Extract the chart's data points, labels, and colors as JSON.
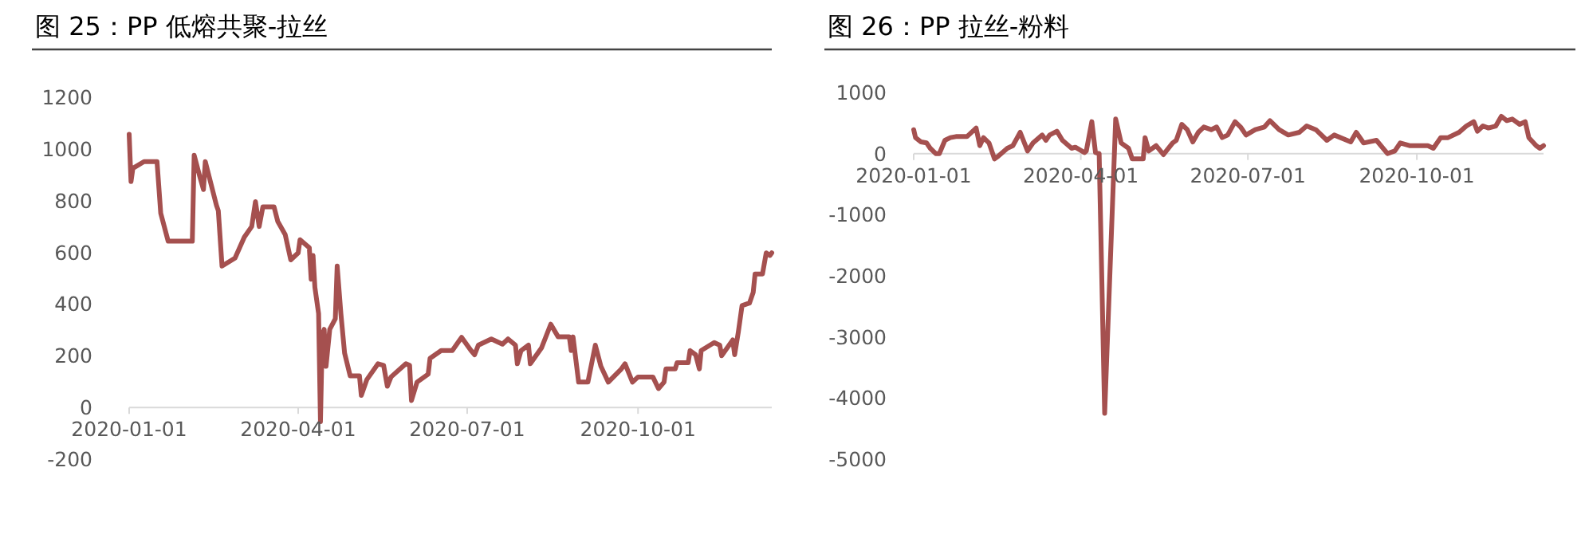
{
  "chart_data": [
    {
      "type": "line",
      "title": "图 25：PP 低熔共聚-拉丝",
      "color": "#a5504f",
      "x": [
        "2020-01-01",
        "2020-01-02",
        "2020-01-03",
        "2020-01-09",
        "2020-01-16",
        "2020-01-18",
        "2020-01-22",
        "2020-02-04",
        "2020-02-05",
        "2020-02-08",
        "2020-02-10",
        "2020-02-11",
        "2020-02-17",
        "2020-02-18",
        "2020-02-20",
        "2020-02-27",
        "2020-03-03",
        "2020-03-07",
        "2020-03-09",
        "2020-03-11",
        "2020-03-13",
        "2020-03-19",
        "2020-03-21",
        "2020-03-25",
        "2020-03-28",
        "2020-04-01",
        "2020-04-02",
        "2020-04-07",
        "2020-04-08",
        "2020-04-09",
        "2020-04-10",
        "2020-04-12",
        "2020-04-13",
        "2020-04-14",
        "2020-04-15",
        "2020-04-16",
        "2020-04-18",
        "2020-04-21",
        "2020-04-22",
        "2020-04-24",
        "2020-04-26",
        "2020-04-29",
        "2020-05-04",
        "2020-05-05",
        "2020-05-08",
        "2020-05-14",
        "2020-05-17",
        "2020-05-19",
        "2020-05-21",
        "2020-05-29",
        "2020-05-31",
        "2020-06-01",
        "2020-06-04",
        "2020-06-10",
        "2020-06-11",
        "2020-06-17",
        "2020-06-23",
        "2020-06-27",
        "2020-06-28",
        "2020-07-03",
        "2020-07-05",
        "2020-07-07",
        "2020-07-14",
        "2020-07-20",
        "2020-07-23",
        "2020-07-27",
        "2020-07-28",
        "2020-07-30",
        "2020-08-03",
        "2020-08-04",
        "2020-08-10",
        "2020-08-15",
        "2020-08-19",
        "2020-08-25",
        "2020-08-26",
        "2020-08-27",
        "2020-08-30",
        "2020-09-04",
        "2020-09-08",
        "2020-09-11",
        "2020-09-15",
        "2020-09-22",
        "2020-09-24",
        "2020-09-28",
        "2020-10-01",
        "2020-10-09",
        "2020-10-12",
        "2020-10-15",
        "2020-10-16",
        "2020-10-21",
        "2020-10-22",
        "2020-10-28",
        "2020-10-29",
        "2020-11-01",
        "2020-11-03",
        "2020-11-04",
        "2020-11-11",
        "2020-11-14",
        "2020-11-15",
        "2020-11-21",
        "2020-11-22",
        "2020-11-24",
        "2020-11-26",
        "2020-11-30",
        "2020-12-02",
        "2020-12-03",
        "2020-12-07",
        "2020-12-09",
        "2020-12-11",
        "2020-12-12"
      ],
      "values": [
        1057,
        874,
        925,
        951,
        951,
        751,
        643,
        643,
        976,
        894,
        843,
        951,
        782,
        761,
        547,
        578,
        659,
        700,
        796,
        700,
        776,
        776,
        720,
        669,
        571,
        598,
        649,
        618,
        496,
        588,
        465,
        363,
        -55,
        282,
        302,
        159,
        302,
        343,
        547,
        363,
        210,
        122,
        122,
        47,
        108,
        169,
        163,
        82,
        118,
        169,
        163,
        27,
        98,
        129,
        190,
        220,
        220,
        261,
        271,
        221,
        204,
        241,
        265,
        245,
        265,
        241,
        169,
        220,
        241,
        169,
        230,
        322,
        273,
        273,
        220,
        273,
        98,
        98,
        241,
        159,
        98,
        149,
        169,
        98,
        118,
        118,
        73,
        98,
        149,
        149,
        173,
        173,
        220,
        204,
        149,
        220,
        251,
        241,
        200,
        261,
        204,
        292,
        394,
        404,
        445,
        516,
        516,
        598,
        588,
        598
      ],
      "xlim": [
        "2020-01-01",
        "2020-12-12"
      ],
      "xticks": [
        "2020-01-01",
        "2020-04-01",
        "2020-07-01",
        "2020-10-01"
      ],
      "ylim": [
        -200,
        1200
      ],
      "yticks": [
        -200,
        0,
        200,
        400,
        600,
        800,
        1000,
        1200
      ],
      "grid": false
    },
    {
      "type": "line",
      "title": "图 26：PP 拉丝-粉料",
      "color": "#a5504f",
      "x": [
        "2020-01-01",
        "2020-01-02",
        "2020-01-05",
        "2020-01-08",
        "2020-01-10",
        "2020-01-13",
        "2020-01-15",
        "2020-01-18",
        "2020-01-21",
        "2020-01-24",
        "2020-01-30",
        "2020-02-04",
        "2020-02-06",
        "2020-02-08",
        "2020-02-11",
        "2020-02-14",
        "2020-02-16",
        "2020-02-21",
        "2020-02-24",
        "2020-02-28",
        "2020-03-03",
        "2020-03-06",
        "2020-03-11",
        "2020-03-13",
        "2020-03-15",
        "2020-03-19",
        "2020-03-22",
        "2020-03-27",
        "2020-03-29",
        "2020-04-03",
        "2020-04-04",
        "2020-04-07",
        "2020-04-09",
        "2020-04-11",
        "2020-04-14",
        "2020-04-20",
        "2020-04-23",
        "2020-04-27",
        "2020-04-29",
        "2020-05-05",
        "2020-05-06",
        "2020-05-08",
        "2020-05-12",
        "2020-05-16",
        "2020-05-21",
        "2020-05-23",
        "2020-05-26",
        "2020-05-29",
        "2020-06-01",
        "2020-06-04",
        "2020-06-07",
        "2020-06-11",
        "2020-06-14",
        "2020-06-17",
        "2020-06-20",
        "2020-06-24",
        "2020-06-27",
        "2020-06-30",
        "2020-07-05",
        "2020-07-10",
        "2020-07-13",
        "2020-07-18",
        "2020-07-23",
        "2020-07-29",
        "2020-08-02",
        "2020-08-07",
        "2020-08-13",
        "2020-08-17",
        "2020-08-26",
        "2020-08-29",
        "2020-09-02",
        "2020-09-09",
        "2020-09-15",
        "2020-09-19",
        "2020-09-22",
        "2020-09-27",
        "2020-10-07",
        "2020-10-10",
        "2020-10-14",
        "2020-10-18",
        "2020-10-24",
        "2020-10-28",
        "2020-11-01",
        "2020-11-03",
        "2020-11-06",
        "2020-11-09",
        "2020-11-13",
        "2020-11-16",
        "2020-11-19",
        "2020-11-22",
        "2020-11-26",
        "2020-11-29",
        "2020-12-01",
        "2020-12-05",
        "2020-12-07",
        "2020-12-09"
      ],
      "values": [
        391,
        261,
        191,
        174,
        87,
        0,
        0,
        217,
        261,
        278,
        278,
        418,
        130,
        261,
        174,
        -87,
        -43,
        87,
        130,
        348,
        43,
        174,
        304,
        217,
        304,
        365,
        217,
        87,
        104,
        17,
        43,
        522,
        17,
        0,
        -4250,
        565,
        174,
        87,
        -87,
        -87,
        261,
        43,
        130,
        -17,
        174,
        217,
        478,
        391,
        191,
        348,
        435,
        391,
        435,
        261,
        304,
        522,
        435,
        304,
        391,
        435,
        539,
        391,
        304,
        348,
        452,
        391,
        217,
        304,
        191,
        348,
        174,
        217,
        0,
        43,
        174,
        130,
        130,
        87,
        261,
        261,
        348,
        452,
        522,
        365,
        452,
        418,
        452,
        609,
        539,
        565,
        478,
        522,
        261,
        130,
        87,
        130
      ],
      "xlim": [
        "2020-01-01",
        "2020-12-09"
      ],
      "xticks": [
        "2020-01-01",
        "2020-04-01",
        "2020-07-01",
        "2020-10-01"
      ],
      "ylim": [
        -5000,
        1000
      ],
      "yticks": [
        -5000,
        -4000,
        -3000,
        -2000,
        -1000,
        0,
        1000
      ],
      "grid": false
    }
  ]
}
